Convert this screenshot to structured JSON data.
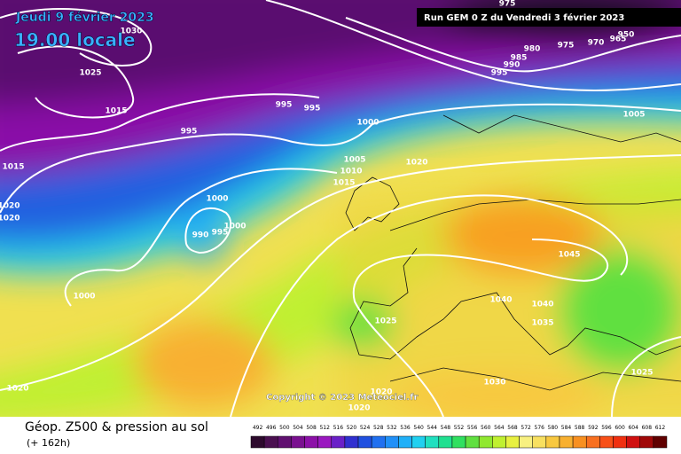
{
  "header": {
    "date": "Jeudi 9 février 2023",
    "time": "19.00 locale",
    "run": "Run GEM 0 Z du Vendredi 3 février 2023"
  },
  "isobar_labels": [
    "1030",
    "1025",
    "1015",
    "1015",
    "1020",
    "1020",
    "995",
    "995",
    "995",
    "1000",
    "1020",
    "1005",
    "1010",
    "1015",
    "1000",
    "1000",
    "990",
    "995",
    "1000",
    "1020",
    "1025",
    "1045",
    "1040",
    "1040",
    "1035",
    "1030",
    "1020",
    "1020",
    "1025",
    "975",
    "980",
    "985",
    "990",
    "995",
    "975",
    "970",
    "965",
    "950",
    "1005"
  ],
  "copyright": "Copyright © 2023 Meteociel.fr",
  "footer": {
    "title": "Géop. Z500 & pression au sol",
    "lead": "(+ 162h)"
  },
  "legend": {
    "ticks": [
      492,
      496,
      500,
      504,
      508,
      512,
      516,
      520,
      524,
      528,
      532,
      536,
      540,
      544,
      548,
      552,
      556,
      560,
      564,
      568,
      572,
      576,
      580,
      584,
      588,
      592,
      596,
      600,
      604,
      608,
      612
    ],
    "colors": [
      "#2d0a2d",
      "#4a1050",
      "#601070",
      "#7a1090",
      "#8c10a8",
      "#9a18c0",
      "#6a20c8",
      "#3030d0",
      "#2050e0",
      "#2070f0",
      "#2090f8",
      "#20b0f8",
      "#20d0f0",
      "#20e0c0",
      "#20e090",
      "#30e060",
      "#60e040",
      "#90e830",
      "#c0f030",
      "#e8f040",
      "#f8f080",
      "#f8e060",
      "#f8c840",
      "#f8b030",
      "#f89020",
      "#f87020",
      "#f85018",
      "#f03010",
      "#d01010",
      "#a00808",
      "#600000"
    ]
  }
}
